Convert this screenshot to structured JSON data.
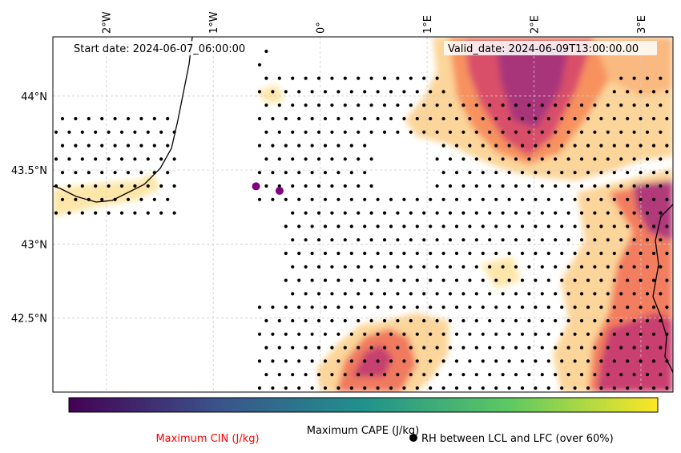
{
  "map": {
    "start_date": "Start date: 2024-06-07_06:00:00",
    "valid_date": "Valid_date: 2024-06-09T13:00:00.00",
    "lon_ticks": [
      "2°W",
      "1°W",
      "0°",
      "1°E",
      "2°E",
      "3°E"
    ],
    "lat_ticks": [
      "44°N",
      "43.5°N",
      "43°N",
      "42.5°N"
    ],
    "lon_values": [
      -2,
      -1,
      0,
      1,
      2,
      3
    ],
    "lat_values": [
      44,
      43.5,
      43,
      42.5
    ],
    "lon_range": [
      -2.5,
      3.3
    ],
    "lat_range": [
      42.0,
      44.4
    ],
    "grid": true
  },
  "colorbar": {
    "label": "Maximum CAPE (J/kg)",
    "colormap": "viridis",
    "colors": [
      "#440154",
      "#3b528b",
      "#21918c",
      "#5ec962",
      "#fde725"
    ]
  },
  "legend": {
    "cin_label": "Maximum CIN (J/kg)",
    "cin_color": "#ff0000",
    "rh_label": "RH between LCL and LFC (over 60%)",
    "rh_marker": "black-dot"
  },
  "cape_colormap": [
    "#fcfdbf",
    "#fcc58a",
    "#f8765c",
    "#d3436e",
    "#982d80"
  ],
  "points": [
    {
      "lon": -0.6,
      "lat": 43.39,
      "color": "#800080"
    },
    {
      "lon": -0.38,
      "lat": 43.36,
      "color": "#800080"
    }
  ]
}
